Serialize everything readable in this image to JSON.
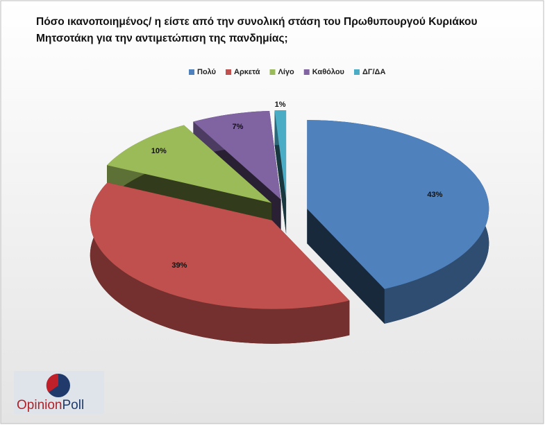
{
  "chart_data": {
    "type": "pie",
    "title": "Πόσο ικανοποιημένος/ η είστε από την συνολική στάση του Πρωθυπουργού Κυριάκου Μητσοτάκη για την αντιμετώπιση της πανδημίας;",
    "categories": [
      "Πολύ",
      "Αρκετά",
      "Λίγο",
      "Καθόλου",
      "ΔΓ/ΔΑ"
    ],
    "values": [
      43,
      39,
      10,
      7,
      1
    ],
    "value_labels": [
      "43%",
      "39%",
      "10%",
      "7%",
      "1%"
    ],
    "colors": [
      "#4f81bd",
      "#c0504d",
      "#9bbb59",
      "#8064a2",
      "#4bacc6"
    ],
    "legend": "top"
  },
  "logo": [
    "Opinion",
    "Poll"
  ]
}
